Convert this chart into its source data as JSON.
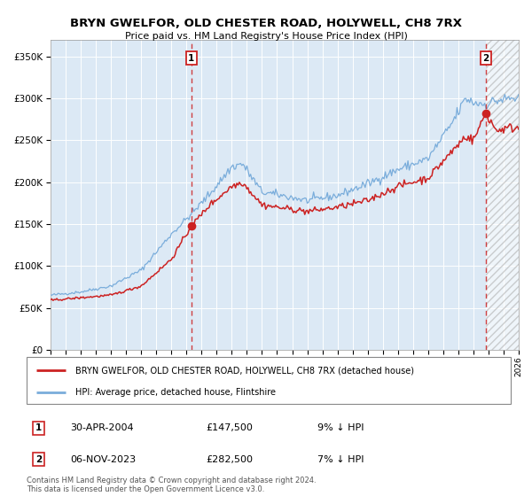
{
  "title": "BRYN GWELFOR, OLD CHESTER ROAD, HOLYWELL, CH8 7RX",
  "subtitle": "Price paid vs. HM Land Registry's House Price Index (HPI)",
  "legend_line1": "BRYN GWELFOR, OLD CHESTER ROAD, HOLYWELL, CH8 7RX (detached house)",
  "legend_line2": "HPI: Average price, detached house, Flintshire",
  "footnote": "Contains HM Land Registry data © Crown copyright and database right 2024.\nThis data is licensed under the Open Government Licence v3.0.",
  "sale1_label": "30-APR-2004",
  "sale1_price": 147500,
  "sale1_pct": "9% ↓ HPI",
  "sale1_t": 2004.33,
  "sale2_label": "06-NOV-2023",
  "sale2_price": 282500,
  "sale2_pct": "7% ↓ HPI",
  "sale2_t": 2023.83,
  "hpi_color": "#7aaddb",
  "price_color": "#cc2222",
  "bg_color": "#dce9f5",
  "hatch_color": "#aaaaaa",
  "ylim": [
    0,
    370000
  ],
  "yticks": [
    0,
    50000,
    100000,
    150000,
    200000,
    250000,
    300000,
    350000
  ],
  "xstart": 1995,
  "xend": 2026
}
